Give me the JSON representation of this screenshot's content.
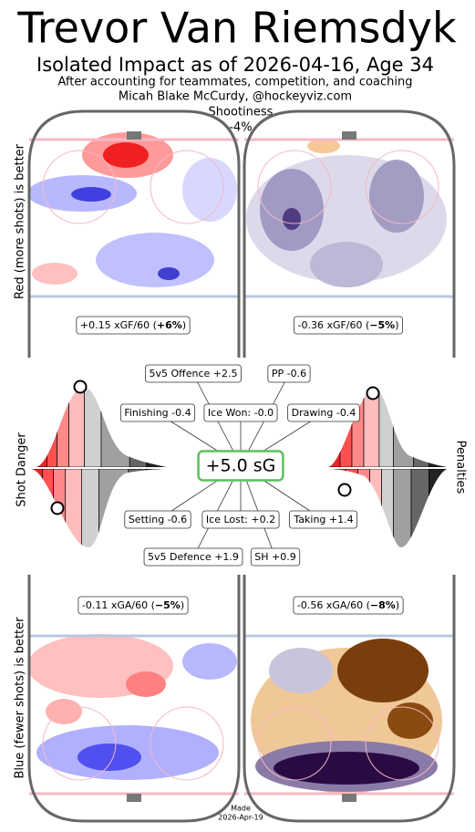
{
  "header": {
    "title": "Trevor Van Riemsdyk",
    "subtitle": "Isolated Impact as of 2026-04-16, Age 34",
    "note": "After accounting for teammates, competition, and coaching",
    "credit": "Micah Blake McCurdy, @hockeyviz.com"
  },
  "shootiness": {
    "label": "Shootiness",
    "value": "-4%"
  },
  "offence": {
    "axis_label": "Red (more shots) is better",
    "left": {
      "prefix": "+0.15 xGF/60 (",
      "pct": "+6%",
      "suffix": ")"
    },
    "right": {
      "prefix": "-0.36 xGF/60 (",
      "pct": "−5%",
      "suffix": ")"
    }
  },
  "defence": {
    "axis_label": "Blue (fewer shots) is better",
    "left": {
      "prefix": "-0.11 xGA/60 (",
      "pct": "−5%",
      "suffix": ")"
    },
    "right": {
      "prefix": "-0.56 xGA/60 (",
      "pct": "−8%",
      "suffix": ")"
    }
  },
  "middle": {
    "left_label": "Shot Danger",
    "right_label": "Penalties",
    "total": "+5.0 sG",
    "components": [
      "5v5 Offence +2.5",
      "PP -0.6",
      "Finishing -0.4",
      "Ice Won: -0.0",
      "Drawing -0.4",
      "Setting -0.6",
      "Ice Lost: +0.2",
      "Taking +1.4",
      "5v5 Defence +1.9",
      "SH +0.9"
    ]
  },
  "footer": {
    "made": "Made",
    "date": "2026-Apr-19"
  }
}
